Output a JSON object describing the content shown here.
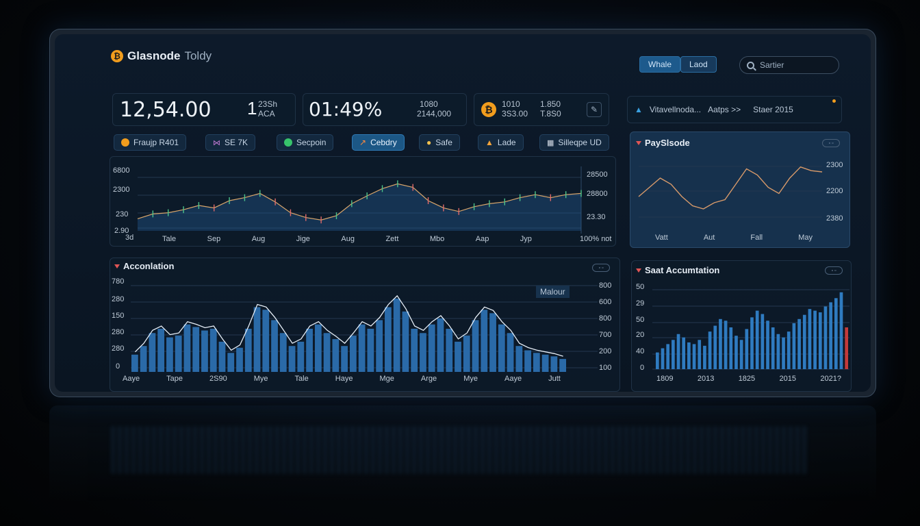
{
  "header": {
    "brand_bold": "Glasnode",
    "brand_light": "Toldy",
    "logo_symbol": "₿",
    "buttons": {
      "whale": "Whale",
      "load": "Laod"
    },
    "search_placeholder": "Sartier"
  },
  "stats": {
    "value1": "12,54.00",
    "value1_sub1": "1",
    "value1_sub2": "23Sh",
    "value1_sub3": "ACA",
    "value2": "01:49%",
    "value2_sub1": "1080",
    "value2_sub2": "2144,000",
    "coin_line1_a": "1010",
    "coin_line1_b": "1.850",
    "coin_line2_a": "3S3.00",
    "coin_line2_b": "T.8S0"
  },
  "chips": [
    {
      "label": "Fraujp R401",
      "icon": "btc-coin-icon"
    },
    {
      "label": "SE 7K",
      "icon": "chart-icon"
    },
    {
      "label": "Secpoin",
      "icon": "green-coin-icon"
    },
    {
      "label": "Cebdry",
      "icon": "trend-icon"
    },
    {
      "label": "Safe",
      "icon": "coins-icon"
    },
    {
      "label": "Lade",
      "icon": "user-icon"
    },
    {
      "label": "Silleqpe UD",
      "icon": "grid-icon"
    }
  ],
  "right_strip": {
    "item1": "Vitavellnoda...",
    "item2": "Aatps >>",
    "item3": "Staer 2015"
  },
  "main_chart": {
    "y_left": [
      "6800",
      "2300",
      "230",
      "2.90",
      "3d"
    ],
    "y_right": [
      "28500",
      "28800",
      "23.30"
    ],
    "x_ticks": [
      "Tale",
      "Sep",
      "Aug",
      "Jige",
      "Aug",
      "Zett",
      "Mbo",
      "Aap",
      "Jyp"
    ],
    "x_corner": "100% not"
  },
  "side_chart": {
    "title": "PaySlsode",
    "y_right": [
      "2300",
      "2200",
      "2380"
    ],
    "x_ticks": [
      "Vatt",
      "Aut",
      "Fall",
      "May"
    ]
  },
  "accum": {
    "title": "Acconlation",
    "legend_label": "Malour",
    "y_left": [
      "780",
      "280",
      "150",
      "280",
      "280",
      "0"
    ],
    "y_right": [
      "800",
      "600",
      "800",
      "700",
      "200",
      "100"
    ],
    "x_ticks": [
      "Aaye",
      "Tape",
      "2S90",
      "Mye",
      "Tale",
      "Haye",
      "Mge",
      "Arge",
      "Mye",
      "Aaye",
      "Jutt"
    ]
  },
  "sact": {
    "title": "Saat Accumtation",
    "y_left": [
      "50",
      "29",
      "50",
      "20",
      "40",
      "0"
    ],
    "x_ticks": [
      "1809",
      "2013",
      "1825",
      "2015",
      "2021?"
    ]
  },
  "chart_data": [
    {
      "type": "line",
      "title": "",
      "x": [
        1,
        2,
        3,
        4,
        5,
        6,
        7,
        8,
        9,
        10,
        11,
        12,
        13,
        14,
        15,
        16,
        17,
        18,
        19,
        20,
        21,
        22,
        23,
        24,
        25,
        26,
        27,
        28,
        29,
        30
      ],
      "values": [
        0.2,
        0.28,
        0.3,
        0.35,
        0.42,
        0.38,
        0.5,
        0.55,
        0.62,
        0.48,
        0.3,
        0.22,
        0.18,
        0.25,
        0.45,
        0.58,
        0.7,
        0.78,
        0.72,
        0.5,
        0.38,
        0.32,
        0.4,
        0.45,
        0.48,
        0.55,
        0.6,
        0.55,
        0.6,
        0.62
      ]
    },
    {
      "type": "line",
      "title": "PaySlsode",
      "values": [
        0.4,
        0.55,
        0.7,
        0.6,
        0.4,
        0.25,
        0.2,
        0.3,
        0.35,
        0.6,
        0.85,
        0.75,
        0.55,
        0.45,
        0.7,
        0.88,
        0.82,
        0.8
      ]
    },
    {
      "type": "bar",
      "title": "Acconlation",
      "values": [
        0.2,
        0.3,
        0.45,
        0.5,
        0.4,
        0.42,
        0.55,
        0.52,
        0.48,
        0.5,
        0.35,
        0.22,
        0.28,
        0.5,
        0.75,
        0.72,
        0.6,
        0.45,
        0.3,
        0.35,
        0.5,
        0.55,
        0.45,
        0.38,
        0.3,
        0.42,
        0.55,
        0.5,
        0.6,
        0.75,
        0.85,
        0.7,
        0.5,
        0.45,
        0.55,
        0.62,
        0.5,
        0.35,
        0.42,
        0.6,
        0.72,
        0.68,
        0.55,
        0.45,
        0.3,
        0.25,
        0.22,
        0.2,
        0.18,
        0.15
      ]
    },
    {
      "type": "bar",
      "title": "Saat Accumtation",
      "values": [
        0.2,
        0.25,
        0.3,
        0.35,
        0.42,
        0.38,
        0.32,
        0.3,
        0.35,
        0.28,
        0.45,
        0.52,
        0.6,
        0.58,
        0.5,
        0.4,
        0.35,
        0.48,
        0.62,
        0.7,
        0.66,
        0.58,
        0.5,
        0.42,
        0.38,
        0.45,
        0.55,
        0.6,
        0.65,
        0.72,
        0.7,
        0.68,
        0.75,
        0.8,
        0.85,
        0.92,
        0.5
      ]
    }
  ]
}
